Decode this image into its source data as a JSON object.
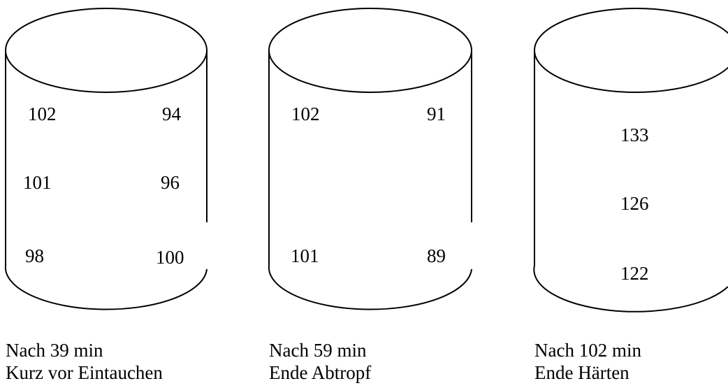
{
  "cylinders": [
    {
      "values": [
        "102",
        "94",
        "101",
        "96",
        "98",
        "100"
      ],
      "caption_line1": "Nach 39 min",
      "caption_line2": "Kurz vor Eintauchen"
    },
    {
      "values": [
        "102",
        "91",
        "101",
        "89"
      ],
      "caption_line1": "Nach 59 min",
      "caption_line2": "Ende Abtropf"
    },
    {
      "values": [
        "133",
        "126",
        "122"
      ],
      "caption_line1": "Nach 102 min",
      "caption_line2": "Ende Härten"
    }
  ]
}
